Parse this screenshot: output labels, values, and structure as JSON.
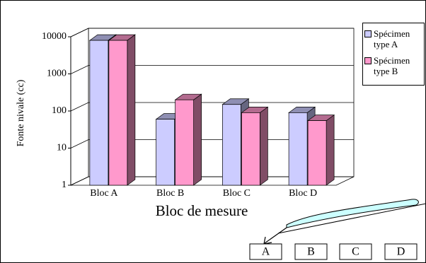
{
  "chart_data": {
    "type": "bar3d",
    "x_label": "Bloc de mesure",
    "y_label": "Fonte nivale (cc)",
    "categories": [
      "Bloc A",
      "Bloc B",
      "Bloc C",
      "Bloc D"
    ],
    "series": [
      {
        "name": "Spécimen type A",
        "color": "#ccccff",
        "values": [
          8000,
          60,
          150,
          90
        ]
      },
      {
        "name": "Spécimen type B",
        "color": "#ff99cc",
        "values": [
          8000,
          200,
          90,
          55
        ]
      }
    ],
    "ylim": [
      1,
      10000
    ],
    "yticks": [
      1,
      10,
      100,
      1000,
      10000
    ],
    "log_scale": true,
    "grid": true,
    "annotations": [
      "A",
      "B",
      "C",
      "D"
    ]
  }
}
